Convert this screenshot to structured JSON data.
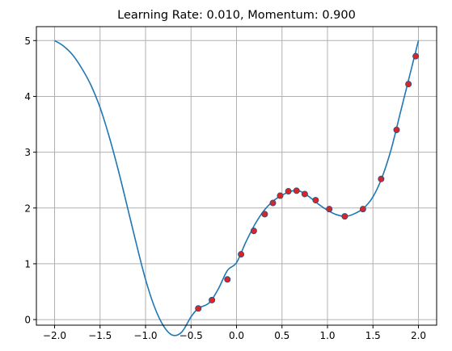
{
  "chart_data": {
    "type": "line",
    "title": "Learning Rate: 0.010, Momentum: 0.900",
    "xlabel": "",
    "ylabel": "",
    "xlim": [
      -2.2,
      2.2
    ],
    "ylim": [
      -0.1,
      5.25
    ],
    "grid": true,
    "x_ticks": [
      -2.0,
      -1.5,
      -1.0,
      -0.5,
      0.0,
      0.5,
      1.0,
      1.5,
      2.0
    ],
    "x_tick_labels": [
      "−2.0",
      "−1.5",
      "−1.0",
      "−0.5",
      "0.0",
      "0.5",
      "1.0",
      "1.5",
      "2.0"
    ],
    "y_ticks": [
      0,
      1,
      2,
      3,
      4,
      5
    ],
    "y_tick_labels": [
      "0",
      "1",
      "2",
      "3",
      "4",
      "5"
    ],
    "series": [
      {
        "kind": "line",
        "color": "#1f77b4",
        "x": [
          -2.0,
          -1.9,
          -1.8,
          -1.7,
          -1.6,
          -1.5,
          -1.4,
          -1.3,
          -1.2,
          -1.1,
          -1.0,
          -0.9,
          -0.8,
          -0.7,
          -0.6,
          -0.5,
          -0.42,
          -0.3,
          -0.2,
          -0.1,
          0.0,
          0.1,
          0.2,
          0.3,
          0.4,
          0.5,
          0.6,
          0.65,
          0.7,
          0.8,
          0.9,
          1.0,
          1.1,
          1.2,
          1.3,
          1.4,
          1.5,
          1.6,
          1.7,
          1.8,
          1.9,
          2.0
        ],
        "y": [
          5.0,
          4.9,
          4.74,
          4.5,
          4.2,
          3.8,
          3.28,
          2.68,
          2.02,
          1.35,
          0.72,
          0.22,
          -0.12,
          -0.28,
          -0.22,
          0.05,
          0.2,
          0.3,
          0.55,
          0.88,
          1.02,
          1.38,
          1.7,
          1.95,
          2.12,
          2.23,
          2.3,
          2.31,
          2.3,
          2.2,
          2.07,
          1.96,
          1.88,
          1.85,
          1.9,
          2.0,
          2.2,
          2.55,
          3.05,
          3.7,
          4.35,
          5.0
        ]
      },
      {
        "kind": "scatter",
        "color": "#d62728",
        "x": [
          -0.42,
          -0.27,
          -0.1,
          0.05,
          0.19,
          0.31,
          0.4,
          0.48,
          0.57,
          0.66,
          0.75,
          0.87,
          1.02,
          1.19,
          1.39,
          1.59,
          1.76,
          1.89,
          1.97
        ],
        "y": [
          0.2,
          0.35,
          0.72,
          1.17,
          1.59,
          1.89,
          2.09,
          2.22,
          2.3,
          2.31,
          2.25,
          2.14,
          1.98,
          1.85,
          1.98,
          2.52,
          3.4,
          4.22,
          4.72
        ]
      }
    ]
  }
}
